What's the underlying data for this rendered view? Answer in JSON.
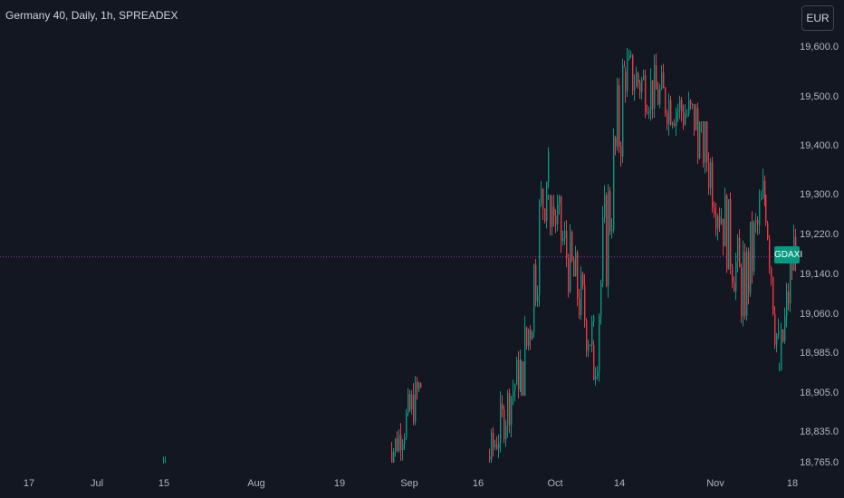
{
  "header": {
    "title": "Germany 40, Daily, 1h, SPREADEX"
  },
  "currency_button": {
    "label": "EUR"
  },
  "price_badge": {
    "label": "GDAXI"
  },
  "colors": {
    "background": "#131722",
    "up": "#089981",
    "down": "#f23645",
    "price_line": "#9c27b0"
  },
  "chart_data": {
    "type": "candlestick",
    "title": "Germany 40, Daily, 1h, SPREADEX",
    "y_ticks": [
      "19,600.0",
      "19,500.0",
      "19,400.0",
      "19,300.0",
      "19,220.0",
      "19,140.0",
      "19,060.0",
      "18,985.0",
      "18,905.0",
      "18,835.0",
      "18,765.0"
    ],
    "y_tick_values": [
      19600,
      19500,
      19400,
      19300,
      19220,
      19140,
      19060,
      18985,
      18905,
      18835,
      18765
    ],
    "x_ticks": [
      "17",
      "Jul",
      "15",
      "Aug",
      "19",
      "Sep",
      "16",
      "Oct",
      "14",
      "Nov",
      "18"
    ],
    "current_price_line": 19175,
    "ohlc_approx": [
      {
        "x": "15",
        "open": 18765,
        "high": 18780,
        "low": 18765,
        "close": 18770
      },
      {
        "x": "Sep",
        "open": 18800,
        "high": 19000,
        "low": 18765,
        "close": 18950
      },
      {
        "x": "16",
        "open": 18780,
        "high": 19030,
        "low": 18765,
        "close": 18990
      },
      {
        "x": "Sep end",
        "open": 19050,
        "high": 19490,
        "low": 19000,
        "close": 19420
      },
      {
        "x": "Oct",
        "open": 19250,
        "high": 19300,
        "low": 18920,
        "close": 19000
      },
      {
        "x": "14",
        "open": 19200,
        "high": 19630,
        "low": 19150,
        "close": 19550
      },
      {
        "x": "Oct mid",
        "open": 19550,
        "high": 19660,
        "low": 19400,
        "close": 19480
      },
      {
        "x": "Nov",
        "open": 19250,
        "high": 19300,
        "low": 19020,
        "close": 19100
      },
      {
        "x": "Nov mid",
        "open": 19100,
        "high": 19520,
        "low": 18840,
        "close": 19200
      },
      {
        "x": "18",
        "open": 19200,
        "high": 19300,
        "low": 19090,
        "close": 19250
      }
    ]
  }
}
